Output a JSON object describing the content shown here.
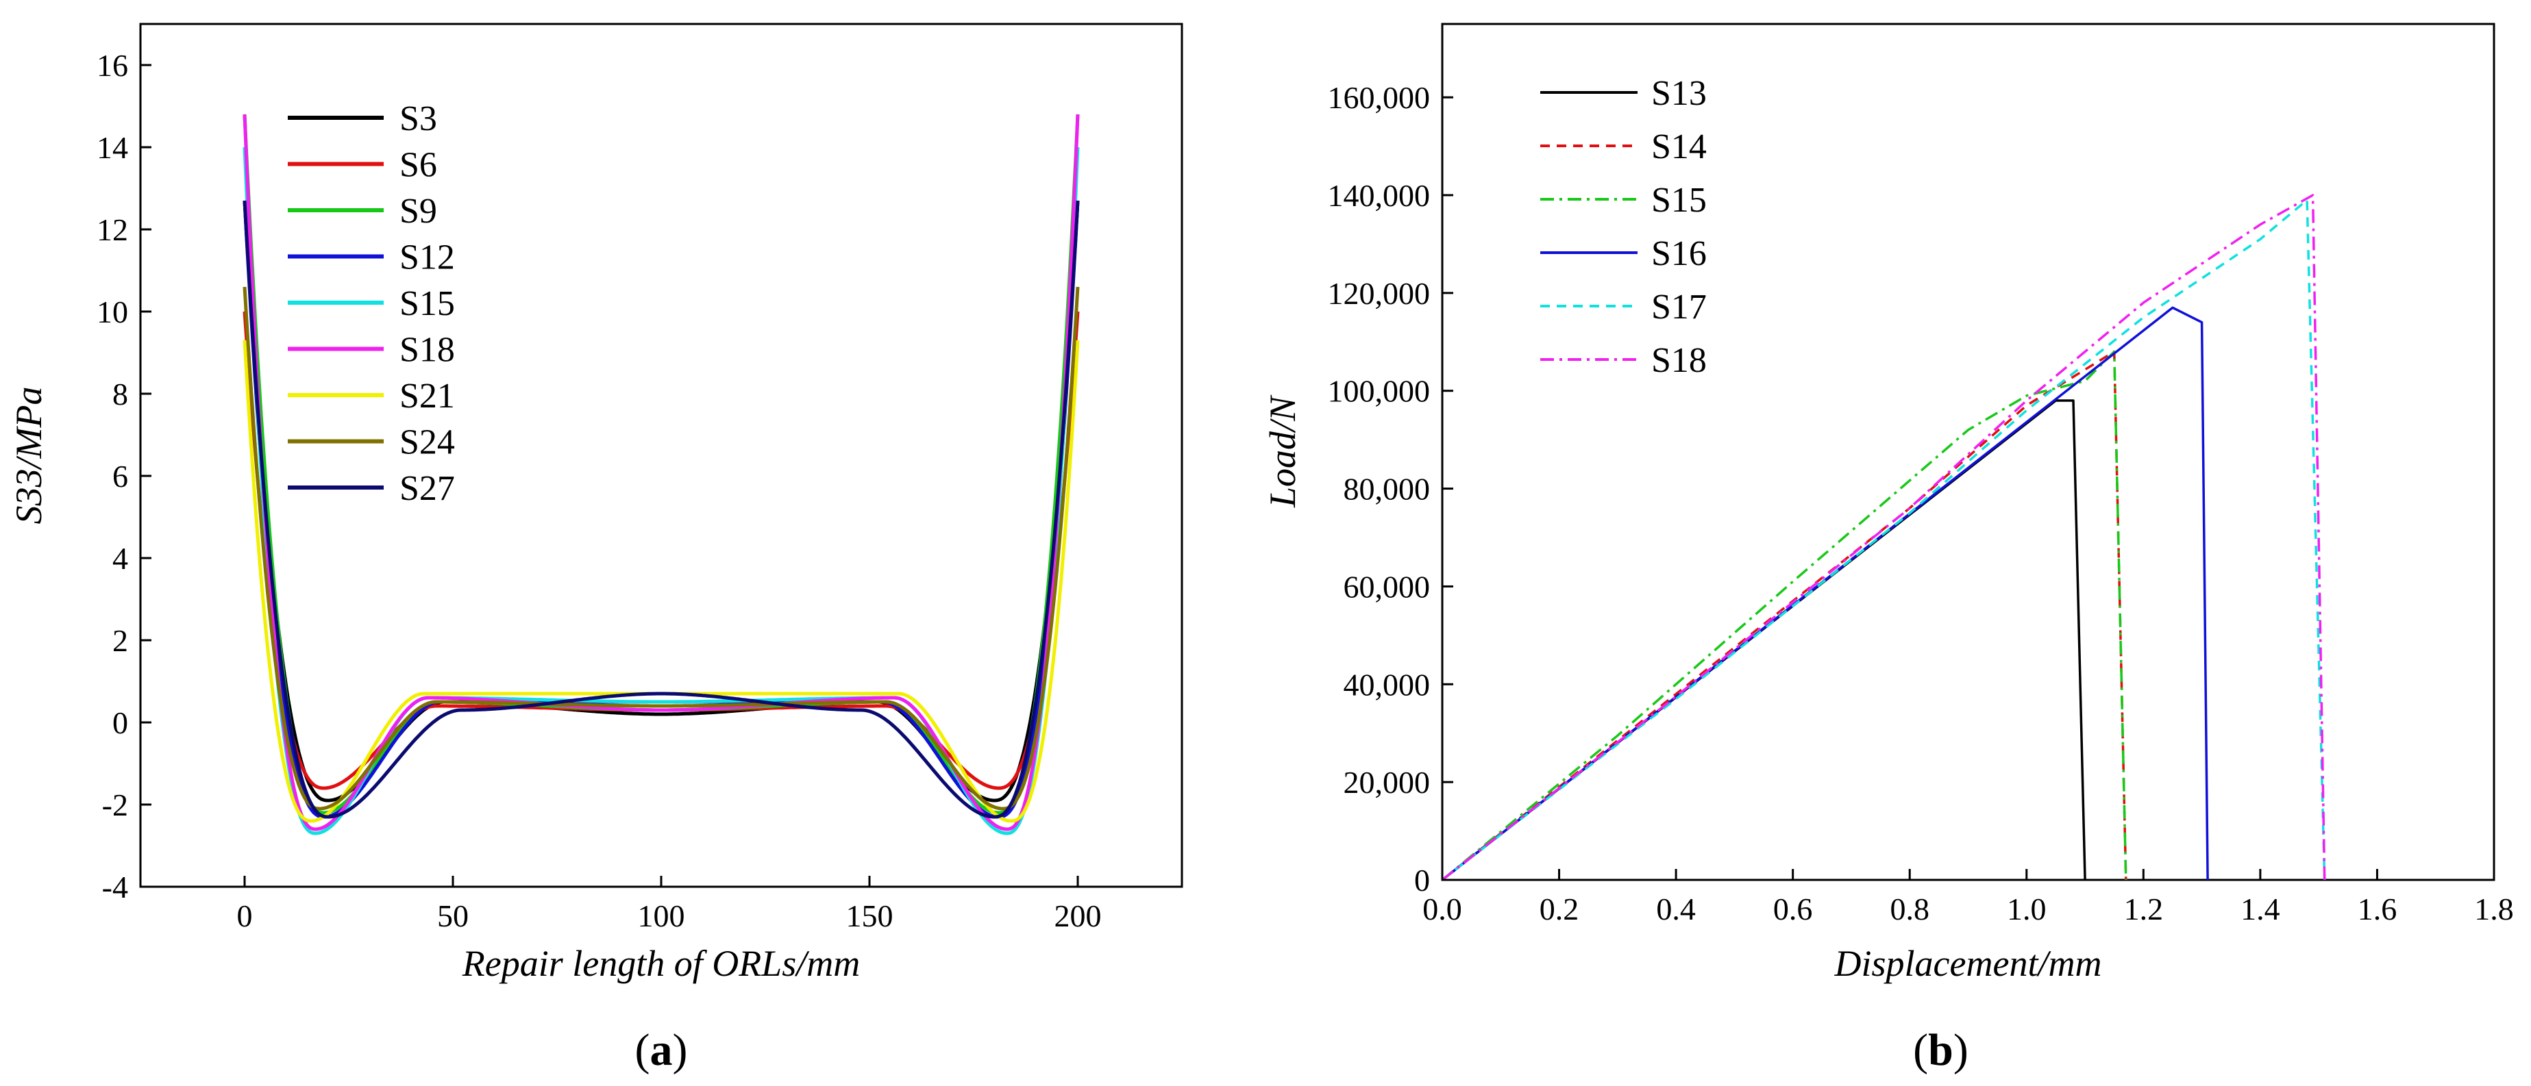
{
  "chart_data": [
    {
      "panel": "a",
      "type": "line",
      "caption_letter": "a",
      "title": "",
      "xlabel": "Repair length of ORLs/mm",
      "ylabel": "S33/MPa",
      "xlim": [
        -25,
        225
      ],
      "ylim": [
        -4,
        17
      ],
      "xticks": [
        0,
        50,
        100,
        150,
        200
      ],
      "yticks": [
        -4,
        -2,
        0,
        2,
        4,
        6,
        8,
        10,
        12,
        14,
        16
      ],
      "xtick_labels": [
        "0",
        "50",
        "100",
        "150",
        "200"
      ],
      "ytick_labels": [
        "-4",
        "-2",
        "0",
        "2",
        "4",
        "6",
        "8",
        "10",
        "12",
        "14",
        "16"
      ],
      "legend_location": "top-left",
      "series": [
        {
          "name": "S3",
          "color": "#000000",
          "peak": 12.7,
          "min": -1.9,
          "min_x": 20,
          "hump": 0.5,
          "hump_x": 48,
          "mid": 0.2
        },
        {
          "name": "S6",
          "color": "#e01010",
          "peak": 10.0,
          "min": -1.6,
          "min_x": 19,
          "hump": 0.4,
          "hump_x": 46,
          "mid": 0.3
        },
        {
          "name": "S9",
          "color": "#18c818",
          "peak": 14.8,
          "min": -2.2,
          "min_x": 19,
          "hump": 0.5,
          "hump_x": 46,
          "mid": 0.3
        },
        {
          "name": "S12",
          "color": "#1010d8",
          "peak": 12.7,
          "min": -2.3,
          "min_x": 19,
          "hump": 0.5,
          "hump_x": 47,
          "mid": 0.5
        },
        {
          "name": "S15",
          "color": "#10e0e0",
          "peak": 14.0,
          "min": -2.7,
          "min_x": 17,
          "hump": 0.6,
          "hump_x": 44,
          "mid": 0.5
        },
        {
          "name": "S18",
          "color": "#f020f0",
          "peak": 14.8,
          "min": -2.6,
          "min_x": 17,
          "hump": 0.6,
          "hump_x": 44,
          "mid": 0.3
        },
        {
          "name": "S21",
          "color": "#f0f000",
          "peak": 9.3,
          "min": -2.4,
          "min_x": 16,
          "hump": 0.7,
          "hump_x": 43,
          "mid": 0.7
        },
        {
          "name": "S24",
          "color": "#807000",
          "peak": 10.6,
          "min": -2.1,
          "min_x": 18,
          "hump": 0.5,
          "hump_x": 46,
          "mid": 0.4
        },
        {
          "name": "S27",
          "color": "#0a0a70",
          "peak": 12.7,
          "min": -2.3,
          "min_x": 20,
          "hump": 0.3,
          "hump_x": 52,
          "mid": 0.7
        }
      ]
    },
    {
      "panel": "b",
      "type": "line",
      "caption_letter": "b",
      "title": "",
      "xlabel": "Displacement/mm",
      "ylabel": "Load/N",
      "xlim": [
        0,
        1.8
      ],
      "ylim": [
        0,
        175000
      ],
      "xticks": [
        0.0,
        0.2,
        0.4,
        0.6,
        0.8,
        1.0,
        1.2,
        1.4,
        1.6,
        1.8
      ],
      "yticks": [
        0,
        20000,
        40000,
        60000,
        80000,
        100000,
        120000,
        140000,
        160000
      ],
      "xtick_labels": [
        "0.0",
        "0.2",
        "0.4",
        "0.6",
        "0.8",
        "1.0",
        "1.2",
        "1.4",
        "1.6",
        "1.8"
      ],
      "ytick_labels": [
        "0",
        "20,000",
        "40,000",
        "60,000",
        "80,000",
        "100,000",
        "120,000",
        "140,000",
        "160,000"
      ],
      "legend_location": "top-left",
      "series": [
        {
          "name": "S13",
          "color": "#000000",
          "dash": "none",
          "x": [
            0,
            1.05,
            1.08,
            1.1
          ],
          "y": [
            0,
            98000,
            98000,
            0
          ]
        },
        {
          "name": "S14",
          "color": "#e01010",
          "dash": "14,10",
          "x": [
            0,
            0.4,
            0.8,
            1.0,
            1.15,
            1.17
          ],
          "y": [
            0,
            38000,
            76000,
            97000,
            108000,
            0
          ]
        },
        {
          "name": "S15",
          "color": "#18c818",
          "dash": "20,8,4,8",
          "x": [
            0,
            0.3,
            0.6,
            0.9,
            1.0,
            1.1,
            1.15,
            1.17
          ],
          "y": [
            0,
            29500,
            61000,
            92000,
            99000,
            102000,
            108000,
            0
          ]
        },
        {
          "name": "S16",
          "color": "#1010d8",
          "dash": "none",
          "x": [
            0,
            1.25,
            1.3,
            1.31
          ],
          "y": [
            0,
            117000,
            114000,
            0
          ]
        },
        {
          "name": "S17",
          "color": "#10e0e0",
          "dash": "14,10",
          "x": [
            0,
            0.4,
            0.8,
            1.0,
            1.2,
            1.4,
            1.48,
            1.51
          ],
          "y": [
            0,
            37000,
            75000,
            96000,
            115000,
            131000,
            139000,
            0
          ]
        },
        {
          "name": "S18",
          "color": "#f020f0",
          "dash": "20,8,4,8",
          "x": [
            0,
            0.4,
            0.8,
            1.0,
            1.2,
            1.4,
            1.49,
            1.51
          ],
          "y": [
            0,
            37500,
            76000,
            98000,
            118000,
            134000,
            140000,
            0
          ]
        }
      ]
    }
  ]
}
